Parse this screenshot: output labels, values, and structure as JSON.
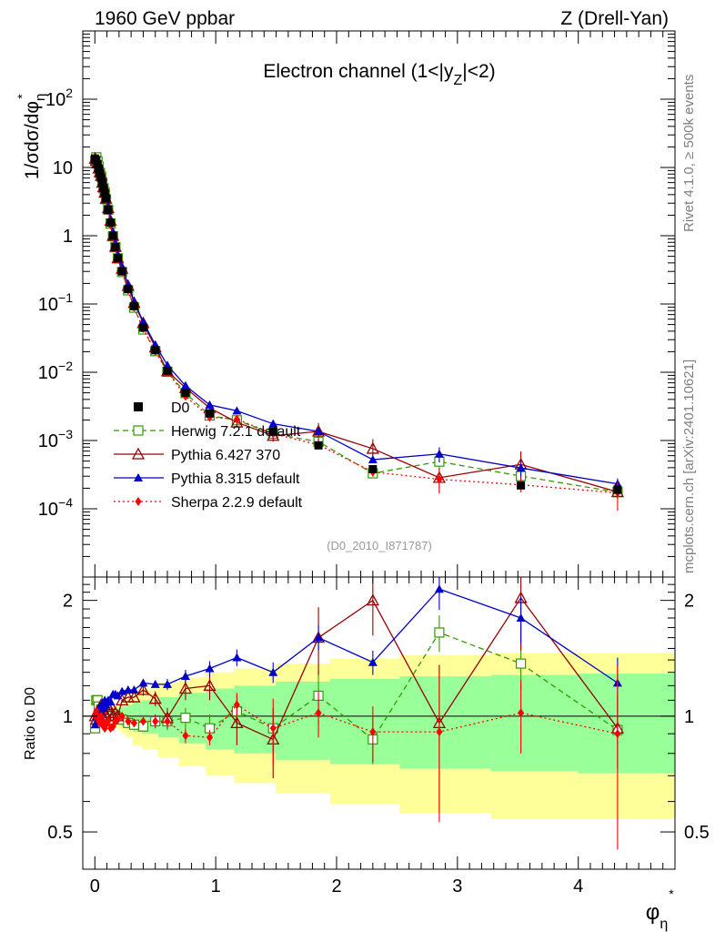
{
  "header": {
    "left": "1960 GeV ppbar",
    "right": "Z (Drell-Yan)"
  },
  "side_labels": {
    "rivet": "Rivet 4.1.0, ≥ 500k events",
    "mcplots": "mcplots.cern.ch [arXiv:2401.10621]"
  },
  "chart_data": {
    "type": "line",
    "title": "Electron channel (1<|y_Z|<2)",
    "analysis_id": "(D0_2010_I871787)",
    "xlabel": "φ*_η",
    "ylabel": "1/σdσ/dφ*_η",
    "ratio_ylabel": "Ratio to D0",
    "xlim": [
      -0.1,
      4.8
    ],
    "ylim": [
      1e-05,
      1000
    ],
    "ratio_ylim": [
      0.4,
      2.3
    ],
    "y_scale": "log",
    "legend_position": "lower-left",
    "x_ticks": [
      0,
      1,
      2,
      3,
      4
    ],
    "y_ticks": [
      {
        "value": 0.0001,
        "label": "10^-4"
      },
      {
        "value": 0.001,
        "label": "10^-3"
      },
      {
        "value": 0.01,
        "label": "10^-2"
      },
      {
        "value": 0.1,
        "label": "10^-1"
      },
      {
        "value": 1,
        "label": "1"
      },
      {
        "value": 10,
        "label": "10"
      },
      {
        "value": 100,
        "label": "10^2"
      }
    ],
    "ratio_ticks": [
      {
        "value": 0.5,
        "label": "0.5"
      },
      {
        "value": 1,
        "label": "1"
      },
      {
        "value": 2,
        "label": "2"
      }
    ],
    "x": [
      0.002,
      0.012,
      0.022,
      0.032,
      0.042,
      0.052,
      0.062,
      0.072,
      0.082,
      0.092,
      0.11,
      0.13,
      0.15,
      0.17,
      0.19,
      0.225,
      0.275,
      0.325,
      0.4,
      0.5,
      0.6,
      0.75,
      0.95,
      1.175,
      1.475,
      1.85,
      2.3,
      2.85,
      3.525,
      4.325
    ],
    "bin_edges": [
      0.0,
      0.004,
      0.008,
      0.012,
      0.016,
      0.02,
      0.024,
      0.029,
      0.034,
      0.039,
      0.045,
      0.051,
      0.057,
      0.064,
      0.072,
      0.081,
      0.091,
      0.102,
      0.114,
      0.128,
      0.145,
      0.165,
      0.189,
      0.219,
      0.258,
      0.312,
      0.391,
      0.524,
      0.695,
      0.918,
      1.153,
      1.496,
      1.947,
      2.522,
      3.277,
      4.0,
      4.8
    ],
    "data": {
      "name": "D0",
      "values": [
        13.5,
        12.8,
        11.2,
        9.7,
        8.3,
        7.1,
        6.0,
        5.0,
        4.2,
        3.5,
        2.4,
        1.55,
        1.0,
        0.68,
        0.47,
        0.3,
        0.165,
        0.093,
        0.045,
        0.021,
        0.0105,
        0.005,
        0.0025,
        0.00135,
        0.00085,
        0.00038,
        0.00022,
        0.00019
      ],
      "x_index": [
        0,
        1,
        2,
        3,
        4,
        5,
        6,
        7,
        8,
        9,
        10,
        11,
        12,
        13,
        14,
        15,
        16,
        17,
        18,
        19,
        20,
        21,
        22,
        24,
        25,
        26,
        28,
        29
      ],
      "color": "#000000"
    },
    "band": {
      "inner_color": "#99ff99",
      "outer_color": "#ffff99",
      "inner_halfwidth": [
        0.02,
        0.02,
        0.02,
        0.02,
        0.02,
        0.02,
        0.02,
        0.02,
        0.02,
        0.02,
        0.025,
        0.025,
        0.025,
        0.03,
        0.03,
        0.03,
        0.03,
        0.035,
        0.035,
        0.04,
        0.04,
        0.045,
        0.05,
        0.06,
        0.07,
        0.09,
        0.1,
        0.12,
        0.15,
        0.18,
        0.2,
        0.23,
        0.25,
        0.27,
        0.28,
        0.29
      ],
      "outer_halfwidth": [
        0.035,
        0.035,
        0.035,
        0.035,
        0.035,
        0.035,
        0.035,
        0.035,
        0.035,
        0.035,
        0.04,
        0.04,
        0.04,
        0.045,
        0.045,
        0.045,
        0.05,
        0.05,
        0.055,
        0.06,
        0.065,
        0.07,
        0.08,
        0.1,
        0.12,
        0.16,
        0.18,
        0.22,
        0.26,
        0.3,
        0.33,
        0.37,
        0.41,
        0.44,
        0.46,
        0.46
      ]
    },
    "series": [
      {
        "name": "Herwig 7.2.1 default",
        "color": "#339900",
        "marker": "open-square",
        "dash": "6,4",
        "x_index": [
          0,
          1,
          2,
          3,
          4,
          5,
          6,
          7,
          8,
          9,
          10,
          11,
          12,
          13,
          14,
          15,
          16,
          17,
          18,
          19,
          20,
          21,
          22,
          23,
          24,
          25,
          26,
          27,
          28,
          29
        ],
        "ratio": [
          0.93,
          1.1,
          1.1,
          1.06,
          1.0,
          1.04,
          1.0,
          0.99,
          1.02,
          0.98,
          1.0,
          0.97,
          0.98,
          1.0,
          0.99,
          0.98,
          0.96,
          0.95,
          0.94,
          0.97,
          0.97,
          0.99,
          0.93,
          1.03,
          0.93,
          1.13,
          0.87,
          1.65,
          1.37,
          0.92
        ],
        "ratio_err": [
          0.02,
          0.02,
          0.02,
          0.02,
          0.02,
          0.02,
          0.02,
          0.02,
          0.02,
          0.02,
          0.02,
          0.02,
          0.02,
          0.02,
          0.02,
          0.02,
          0.02,
          0.02,
          0.03,
          0.04,
          0.05,
          0.06,
          0.08,
          0.1,
          0.12,
          0.18,
          0.12,
          0.18,
          0.2,
          0.08
        ]
      },
      {
        "name": "Pythia 6.427 370",
        "color": "#990000",
        "marker": "open-triangle",
        "dash": "",
        "x_index": [
          0,
          1,
          2,
          3,
          4,
          5,
          6,
          7,
          8,
          9,
          10,
          11,
          12,
          13,
          14,
          15,
          16,
          17,
          18,
          19,
          20,
          21,
          22,
          23,
          24,
          25,
          26,
          27,
          28,
          29
        ],
        "ratio": [
          1.0,
          0.98,
          1.03,
          1.0,
          1.03,
          1.07,
          1.0,
          1.04,
          1.02,
          1.0,
          1.06,
          1.07,
          1.0,
          1.02,
          1.0,
          1.1,
          1.12,
          1.12,
          1.17,
          1.11,
          0.99,
          1.18,
          1.2,
          0.96,
          0.87,
          1.6,
          2.0,
          0.96,
          2.03,
          0.93
        ],
        "ratio_err": [
          0.03,
          0.03,
          0.03,
          0.03,
          0.03,
          0.03,
          0.03,
          0.03,
          0.03,
          0.03,
          0.03,
          0.03,
          0.03,
          0.03,
          0.03,
          0.03,
          0.03,
          0.03,
          0.04,
          0.05,
          0.06,
          0.08,
          0.1,
          0.12,
          0.18,
          0.32,
          0.38,
          0.4,
          0.55,
          0.2
        ]
      },
      {
        "name": "Pythia 8.315 default",
        "color": "#0000cc",
        "marker": "filled-triangle",
        "dash": "",
        "x_index": [
          0,
          1,
          2,
          3,
          4,
          5,
          6,
          7,
          8,
          9,
          10,
          11,
          12,
          13,
          14,
          15,
          16,
          17,
          18,
          19,
          20,
          21,
          22,
          23,
          24,
          25,
          26,
          27,
          28,
          29
        ],
        "ratio": [
          0.95,
          1.0,
          1.03,
          0.97,
          1.06,
          1.02,
          1.08,
          1.05,
          1.1,
          1.07,
          1.1,
          1.09,
          1.14,
          1.14,
          1.13,
          1.16,
          1.17,
          1.17,
          1.22,
          1.21,
          1.21,
          1.27,
          1.33,
          1.42,
          1.3,
          1.6,
          1.38,
          2.14,
          1.8,
          1.22
        ],
        "ratio_err": [
          0.02,
          0.02,
          0.02,
          0.02,
          0.02,
          0.02,
          0.02,
          0.02,
          0.02,
          0.02,
          0.02,
          0.02,
          0.02,
          0.02,
          0.02,
          0.02,
          0.02,
          0.02,
          0.03,
          0.03,
          0.04,
          0.05,
          0.06,
          0.07,
          0.08,
          0.12,
          0.1,
          0.25,
          0.25,
          0.2
        ]
      },
      {
        "name": "Sherpa 2.2.9 default",
        "color": "#ff0000",
        "marker": "filled-diamond",
        "dash": "2,3",
        "x_index": [
          0,
          1,
          2,
          3,
          4,
          5,
          6,
          7,
          8,
          9,
          10,
          11,
          12,
          13,
          14,
          15,
          16,
          17,
          18,
          19,
          20,
          21,
          22,
          23,
          24,
          25,
          26,
          27,
          28,
          29
        ],
        "ratio": [
          1.0,
          1.03,
          1.0,
          0.97,
          0.96,
          1.0,
          0.95,
          0.97,
          0.93,
          0.95,
          0.97,
          0.93,
          0.94,
          0.97,
          0.98,
          1.0,
          0.97,
          0.96,
          0.97,
          0.97,
          0.97,
          0.89,
          0.88,
          1.07,
          0.93,
          1.02,
          0.91,
          0.91,
          1.02,
          0.9
        ],
        "ratio_err": [
          0.02,
          0.02,
          0.02,
          0.02,
          0.02,
          0.02,
          0.02,
          0.02,
          0.02,
          0.02,
          0.02,
          0.02,
          0.02,
          0.02,
          0.02,
          0.02,
          0.02,
          0.02,
          0.03,
          0.04,
          0.04,
          0.04,
          0.04,
          0.08,
          0.18,
          0.14,
          0.15,
          0.38,
          0.22,
          0.45
        ]
      }
    ]
  }
}
